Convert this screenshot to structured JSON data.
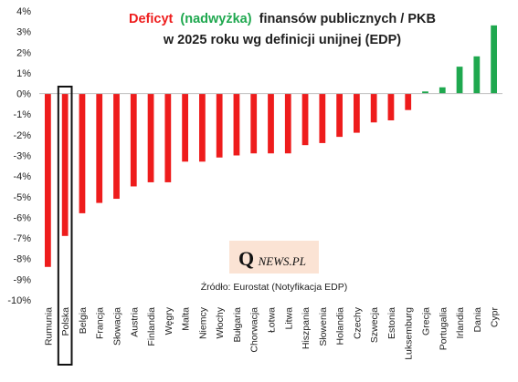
{
  "chart_data": {
    "type": "bar",
    "title": {
      "part1": "Deficyt",
      "part2": "(nadwyżka)",
      "part3": "finansów publicznych / PKB",
      "line2": "w 2025 roku wg definicji unijnej (EDP)"
    },
    "xlabel": "",
    "ylabel": "",
    "ylim": [
      -10,
      4
    ],
    "y_ticks": [
      4,
      3,
      2,
      1,
      0,
      -1,
      -2,
      -3,
      -4,
      -5,
      -6,
      -7,
      -8,
      -9,
      -10
    ],
    "y_tick_labels": [
      "4%",
      "3%",
      "2%",
      "1%",
      "0%",
      "-1%",
      "-2%",
      "-3%",
      "-4%",
      "-5%",
      "-6%",
      "-7%",
      "-8%",
      "-9%",
      "-10%"
    ],
    "categories": [
      "Rumunia",
      "Polska",
      "Belgia",
      "Francja",
      "Słowacja",
      "Austria",
      "Finlandia",
      "Węgry",
      "Malta",
      "Niemcy",
      "Włochy",
      "Bułgaria",
      "Chorwacja",
      "Łotwa",
      "Litwa",
      "Hiszpania",
      "Słowenia",
      "Holandia",
      "Czechy",
      "Szwecja",
      "Estonia",
      "Luksemburg",
      "Grecja",
      "Portugalia",
      "Irlandia",
      "Dania",
      "Cypr"
    ],
    "values": [
      -8.4,
      -6.9,
      -5.8,
      -5.3,
      -5.1,
      -4.5,
      -4.3,
      -4.3,
      -3.3,
      -3.3,
      -3.1,
      -3.0,
      -2.9,
      -2.9,
      -2.9,
      -2.5,
      -2.4,
      -2.1,
      -1.9,
      -1.4,
      -1.3,
      -0.8,
      0.1,
      0.3,
      1.3,
      1.8,
      3.3
    ],
    "highlight": "Polska",
    "grid": false,
    "legend": "none"
  },
  "colors": {
    "deficit": "#ee1c1c",
    "surplus": "#1fa84f",
    "title_dark": "#1f1f1f",
    "logo_bg": "#fbe3d4"
  },
  "source": "Źródło: Eurostat (Notyfikacja EDP)",
  "logo": {
    "q": "Q",
    "rest": "NEWS.PL"
  }
}
